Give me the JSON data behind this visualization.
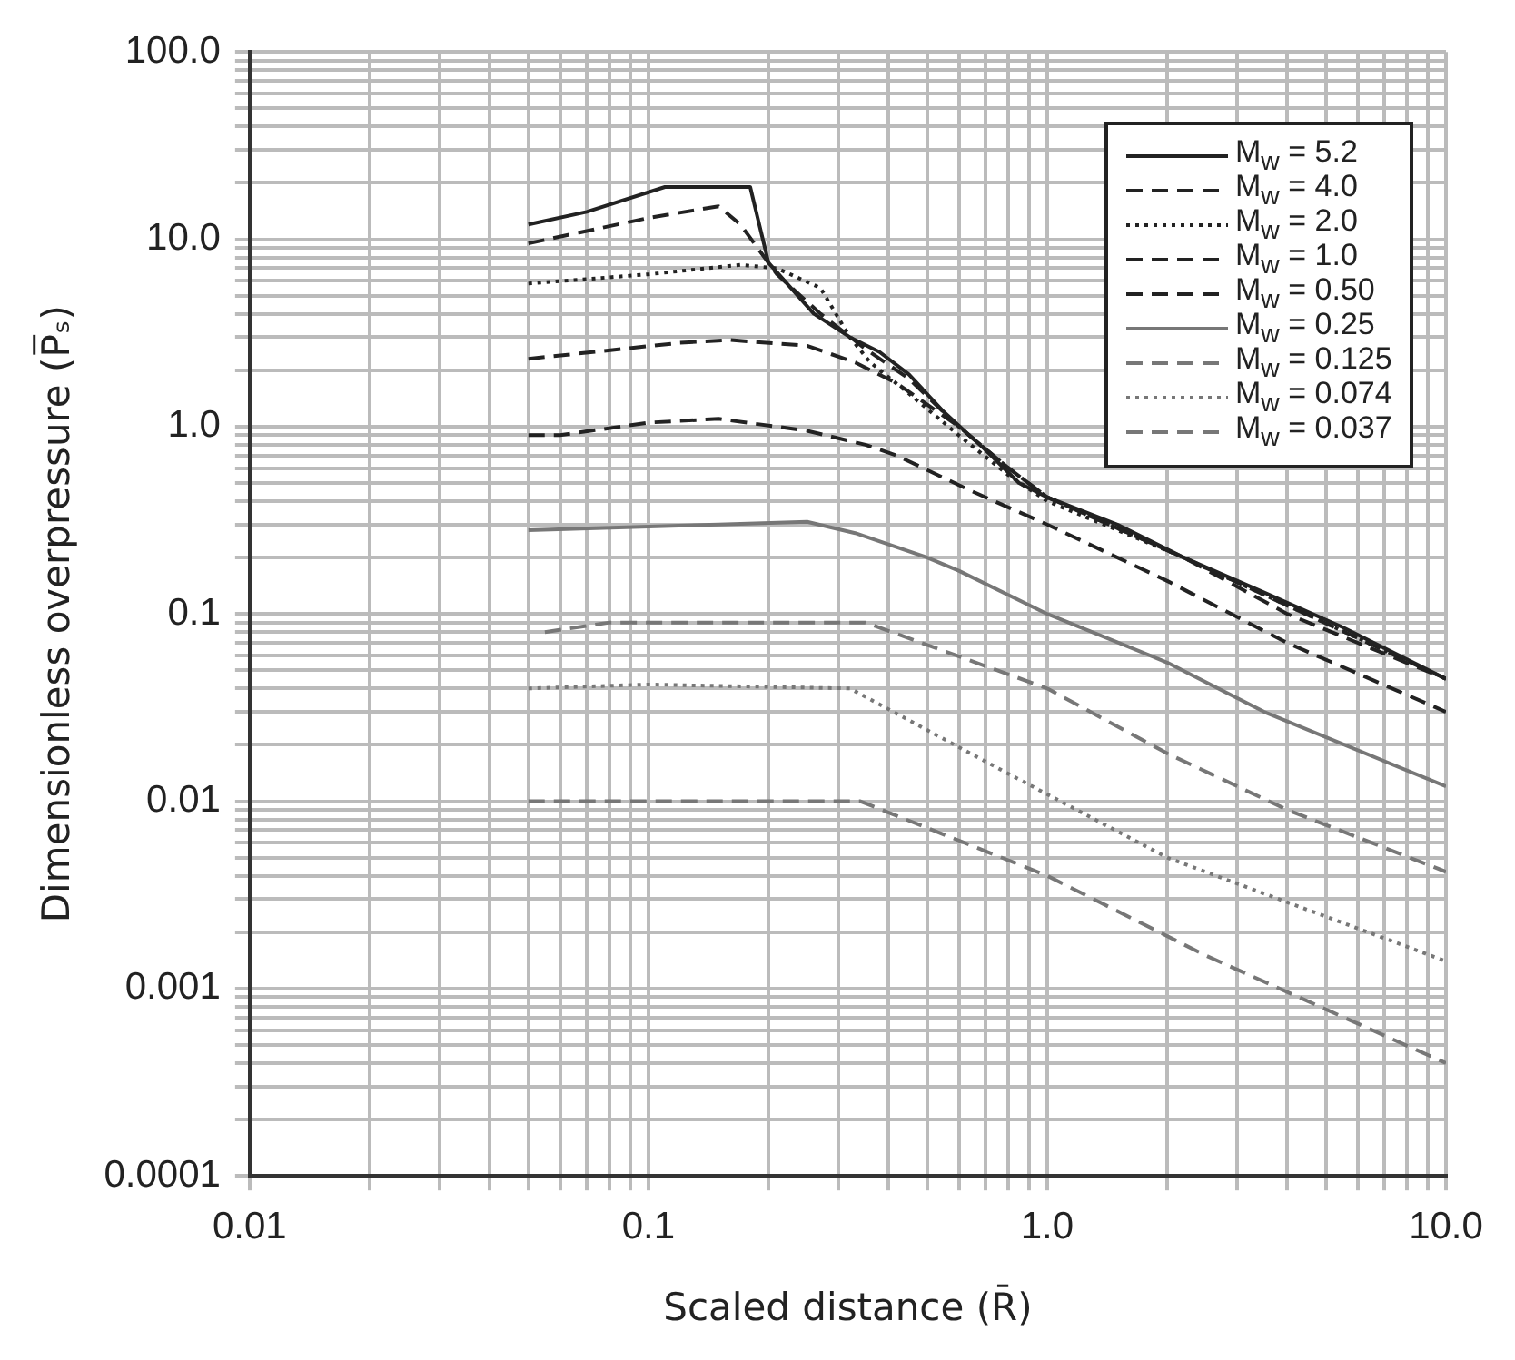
{
  "chart_data": {
    "type": "line",
    "xlabel": "Scaled distance (R̄)",
    "ylabel": "Dimensionless overpressure (P̅ₛ)",
    "log": "xy",
    "grid": true,
    "legend": "top right",
    "marker": "none",
    "xlim": [
      0.01,
      10
    ],
    "ylim": [
      0.0001,
      100
    ],
    "xticks": [
      0.01,
      {
        "value": 0.02,
        "label": null
      },
      {
        "value": 0.03,
        "label": null
      },
      {
        "value": 0.04,
        "label": null
      },
      {
        "value": 0.05,
        "label": null
      },
      {
        "value": 0.06,
        "label": null
      },
      {
        "value": 0.07,
        "label": null
      },
      {
        "value": 0.08,
        "label": null
      },
      {
        "value": 0.09,
        "label": null
      },
      0.1,
      {
        "value": 0.2,
        "label": null
      },
      {
        "value": 0.3,
        "label": null
      },
      {
        "value": 0.4,
        "label": null
      },
      {
        "value": 0.5,
        "label": null
      },
      {
        "value": 0.6,
        "label": null
      },
      {
        "value": 0.7,
        "label": null
      },
      {
        "value": 0.8,
        "label": null
      },
      {
        "value": 0.9,
        "label": null
      },
      {
        "value": 1,
        "label": "1.0"
      },
      {
        "value": 2,
        "label": null
      },
      {
        "value": 3,
        "label": null
      },
      {
        "value": 4,
        "label": null
      },
      {
        "value": 5,
        "label": null
      },
      {
        "value": 6,
        "label": null
      },
      {
        "value": 7,
        "label": null
      },
      {
        "value": 8,
        "label": null
      },
      {
        "value": 9,
        "label": null
      },
      {
        "value": 10,
        "label": "10.0"
      }
    ],
    "yticks": [
      {
        "value": 0.0001,
        "label": "0.0001"
      },
      {
        "value": 0.0002,
        "label": null
      },
      {
        "value": 0.0003,
        "label": null
      },
      {
        "value": 0.0004,
        "label": null
      },
      {
        "value": 0.0005,
        "label": null
      },
      {
        "value": 0.0006,
        "label": null
      },
      {
        "value": 0.0007,
        "label": null
      },
      {
        "value": 0.0008,
        "label": null
      },
      {
        "value": 0.0009,
        "label": null
      },
      {
        "value": 0.001,
        "label": "0.001"
      },
      {
        "value": 0.002,
        "label": null
      },
      {
        "value": 0.003,
        "label": null
      },
      {
        "value": 0.004,
        "label": null
      },
      {
        "value": 0.005,
        "label": null
      },
      {
        "value": 0.006,
        "label": null
      },
      {
        "value": 0.007,
        "label": null
      },
      {
        "value": 0.008,
        "label": null
      },
      {
        "value": 0.009,
        "label": null
      },
      {
        "value": 0.01,
        "label": "0.01"
      },
      {
        "value": 0.02,
        "label": null
      },
      {
        "value": 0.03,
        "label": null
      },
      {
        "value": 0.04,
        "label": null
      },
      {
        "value": 0.05,
        "label": null
      },
      {
        "value": 0.06,
        "label": null
      },
      {
        "value": 0.07,
        "label": null
      },
      {
        "value": 0.08,
        "label": null
      },
      {
        "value": 0.09,
        "label": null
      },
      {
        "value": 0.1,
        "label": "0.1"
      },
      {
        "value": 0.2,
        "label": null
      },
      {
        "value": 0.3,
        "label": null
      },
      {
        "value": 0.4,
        "label": null
      },
      {
        "value": 0.5,
        "label": null
      },
      {
        "value": 0.6,
        "label": null
      },
      {
        "value": 0.7,
        "label": null
      },
      {
        "value": 0.8,
        "label": null
      },
      {
        "value": 0.9,
        "label": null
      },
      {
        "value": 1,
        "label": "1.0"
      },
      {
        "value": 2,
        "label": null
      },
      {
        "value": 3,
        "label": null
      },
      {
        "value": 4,
        "label": null
      },
      {
        "value": 5,
        "label": null
      },
      {
        "value": 6,
        "label": null
      },
      {
        "value": 7,
        "label": null
      },
      {
        "value": 8,
        "label": null
      },
      {
        "value": 9,
        "label": null
      },
      {
        "value": 10,
        "label": "10.0"
      },
      {
        "value": 20,
        "label": null
      },
      {
        "value": 30,
        "label": null
      },
      {
        "value": 40,
        "label": null
      },
      {
        "value": 50,
        "label": null
      },
      {
        "value": 60,
        "label": null
      },
      {
        "value": 70,
        "label": null
      },
      {
        "value": 80,
        "label": null
      },
      {
        "value": 90,
        "label": null
      },
      {
        "value": 100,
        "label": "100.0"
      }
    ],
    "series": [
      {
        "name": "M$_{w}$ = 5.2",
        "color": "#222222",
        "line_style": "solid",
        "x": [
          0.05,
          0.07,
          0.11,
          0.18,
          0.2,
          0.26,
          0.32,
          0.38,
          0.45,
          0.55,
          0.7,
          0.85,
          1.0,
          1.5,
          2.2,
          3.5,
          5.5,
          10
        ],
        "values": [
          12,
          14,
          19,
          19,
          7.5,
          4,
          3,
          2.5,
          1.9,
          1.2,
          0.75,
          0.5,
          0.42,
          0.3,
          0.2,
          0.13,
          0.085,
          0.045
        ]
      },
      {
        "name": "M$_{w}$ = 4.0",
        "color": "#222222",
        "line_style": "dashed",
        "x": [
          0.05,
          0.1,
          0.15,
          0.17,
          0.21,
          0.27,
          0.35,
          0.45,
          0.6,
          0.8,
          1.0,
          2.2,
          4,
          10
        ],
        "values": [
          9.5,
          13,
          15,
          12,
          6.5,
          4,
          2.6,
          1.8,
          1.0,
          0.6,
          0.42,
          0.2,
          0.1,
          0.045
        ]
      },
      {
        "name": "M$_{w}$ = 2.0",
        "color": "#222222",
        "line_style": "dotted",
        "x": [
          0.05,
          0.1,
          0.17,
          0.21,
          0.27,
          0.32,
          0.36,
          0.45,
          0.6,
          0.8,
          1.0,
          2.2,
          10
        ],
        "values": [
          5.8,
          6.5,
          7.3,
          7,
          5.5,
          3,
          2.2,
          1.5,
          0.9,
          0.55,
          0.4,
          0.2,
          0.045
        ]
      },
      {
        "name": "M$_{w}$ = 1.0",
        "color": "#222222",
        "line_style": "dashed",
        "x": [
          0.05,
          0.12,
          0.16,
          0.25,
          0.33,
          0.42,
          0.6,
          0.8,
          1.0,
          2.2,
          10
        ],
        "values": [
          2.3,
          2.8,
          2.9,
          2.7,
          2.2,
          1.7,
          1.0,
          0.6,
          0.42,
          0.2,
          0.045
        ]
      },
      {
        "name": "M$_{w}$ = 0.50",
        "color": "#222222",
        "line_style": "dashed",
        "x": [
          0.05,
          0.06,
          0.1,
          0.15,
          0.25,
          0.35,
          0.42,
          0.65,
          1.0,
          2.0,
          4,
          10
        ],
        "values": [
          0.9,
          0.9,
          1.05,
          1.1,
          0.95,
          0.8,
          0.7,
          0.45,
          0.3,
          0.15,
          0.07,
          0.03
        ]
      },
      {
        "name": "M$_{w}$ = 0.25",
        "color": "#777777",
        "line_style": "solid",
        "x": [
          0.05,
          0.15,
          0.25,
          0.33,
          0.5,
          0.6,
          1.0,
          2,
          3.5,
          10
        ],
        "values": [
          0.28,
          0.3,
          0.31,
          0.27,
          0.2,
          0.17,
          0.1,
          0.055,
          0.03,
          0.012
        ]
      },
      {
        "name": "M$_{w}$ = 0.125",
        "color": "#777777",
        "line_style": "dashed",
        "x": [
          0.055,
          0.08,
          0.35,
          1.0,
          2,
          4,
          10
        ],
        "values": [
          0.08,
          0.09,
          0.09,
          0.04,
          0.018,
          0.009,
          0.0042
        ]
      },
      {
        "name": "M$_{w}$ = 0.074",
        "color": "#777777",
        "line_style": "dotted",
        "x": [
          0.05,
          0.1,
          0.32,
          0.8,
          2,
          10
        ],
        "values": [
          0.04,
          0.042,
          0.04,
          0.014,
          0.005,
          0.0014
        ]
      },
      {
        "name": "M$_{w}$ = 0.037",
        "color": "#777777",
        "line_style": "dashed",
        "x": [
          0.05,
          0.34,
          1.0,
          2.5,
          10
        ],
        "values": [
          0.01,
          0.01,
          0.004,
          0.0015,
          0.0004
        ]
      }
    ]
  }
}
